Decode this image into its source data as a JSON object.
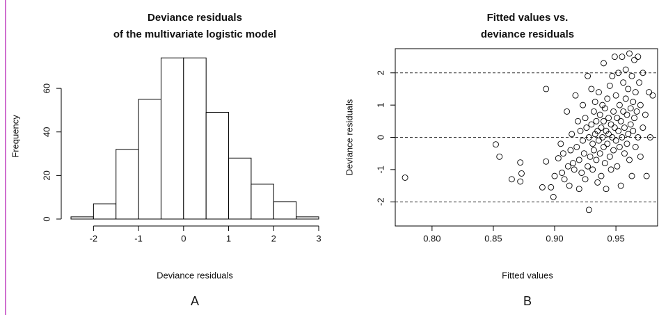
{
  "chart_data": [
    {
      "type": "histogram",
      "title": [
        "Deviance residuals",
        "of the multivariate logistic model"
      ],
      "x_label": "Deviance residuals",
      "y_label": "Frequency",
      "panel_label": "A",
      "bins": [
        -2.5,
        -2,
        -1.5,
        -1,
        -0.5,
        0,
        0.5,
        1,
        1.5,
        2,
        2.5,
        3
      ],
      "values": [
        1,
        7,
        32,
        55,
        74,
        74,
        49,
        28,
        16,
        8,
        1
      ],
      "color": "#ffffff",
      "edge_color": "#000000",
      "xlim": [
        -2.5,
        3
      ],
      "xticks": [
        -2,
        -1,
        0,
        1,
        2,
        3
      ],
      "ylim": [
        0,
        76
      ],
      "yticks": [
        0,
        20,
        40,
        60
      ]
    },
    {
      "type": "scatter",
      "title": [
        "Fitted values vs.",
        "deviance residuals"
      ],
      "x_label": "Fitted values",
      "y_label": "Deviance residuals",
      "panel_label": "B",
      "x": [
        0.778,
        0.852,
        0.855,
        0.865,
        0.872,
        0.873,
        0.872,
        0.893,
        0.89,
        0.897,
        0.899,
        0.893,
        0.9,
        0.903,
        0.905,
        0.906,
        0.908,
        0.907,
        0.91,
        0.911,
        0.912,
        0.913,
        0.914,
        0.915,
        0.916,
        0.917,
        0.918,
        0.919,
        0.92,
        0.92,
        0.921,
        0.922,
        0.923,
        0.923,
        0.924,
        0.925,
        0.925,
        0.926,
        0.927,
        0.927,
        0.928,
        0.928,
        0.929,
        0.93,
        0.93,
        0.931,
        0.931,
        0.932,
        0.932,
        0.933,
        0.933,
        0.934,
        0.934,
        0.935,
        0.935,
        0.936,
        0.936,
        0.937,
        0.937,
        0.938,
        0.938,
        0.939,
        0.939,
        0.94,
        0.94,
        0.94,
        0.941,
        0.941,
        0.942,
        0.942,
        0.943,
        0.943,
        0.944,
        0.944,
        0.945,
        0.945,
        0.946,
        0.946,
        0.947,
        0.947,
        0.948,
        0.948,
        0.949,
        0.949,
        0.95,
        0.95,
        0.951,
        0.951,
        0.952,
        0.952,
        0.953,
        0.953,
        0.954,
        0.954,
        0.955,
        0.955,
        0.956,
        0.956,
        0.957,
        0.957,
        0.958,
        0.958,
        0.959,
        0.959,
        0.96,
        0.96,
        0.961,
        0.961,
        0.962,
        0.962,
        0.963,
        0.963,
        0.964,
        0.964,
        0.965,
        0.965,
        0.966,
        0.966,
        0.967,
        0.968,
        0.968,
        0.969,
        0.97,
        0.97,
        0.972,
        0.972,
        0.974,
        0.975,
        0.977,
        0.978,
        0.98
      ],
      "y": [
        -1.25,
        -0.22,
        -0.6,
        -1.3,
        -0.78,
        -1.12,
        -1.37,
        1.5,
        -1.55,
        -1.55,
        -1.85,
        -0.75,
        -1.2,
        -0.65,
        -0.2,
        -1.1,
        -1.3,
        -0.5,
        0.8,
        -0.9,
        -1.5,
        -0.4,
        0.1,
        -0.8,
        -1.0,
        1.3,
        -0.3,
        0.5,
        -1.6,
        -0.7,
        0.2,
        -1.1,
        1.0,
        -0.1,
        -0.5,
        0.6,
        -1.3,
        0.3,
        -0.9,
        1.9,
        -2.25,
        0.0,
        -0.6,
        1.5,
        0.4,
        -0.2,
        -1.0,
        0.8,
        -0.4,
        0.1,
        1.1,
        -0.7,
        0.5,
        -1.4,
        0.2,
        -0.1,
        1.4,
        0.7,
        -0.5,
        0.3,
        -1.2,
        0.0,
        1.0,
        2.3,
        -0.3,
        0.5,
        -0.8,
        0.9,
        0.2,
        -1.6,
        1.2,
        -0.2,
        0.6,
        0.1,
        -0.6,
        1.6,
        0.4,
        -1.0,
        0.0,
        1.9,
        0.8,
        -0.4,
        2.5,
        0.3,
        -0.1,
        1.3,
        0.6,
        -0.9,
        2.0,
        0.2,
        -0.3,
        1.0,
        0.5,
        -1.5,
        2.5,
        0.0,
        0.8,
        1.7,
        -0.5,
        0.3,
        2.1,
        1.2,
        -0.2,
        0.7,
        1.5,
        0.1,
        2.6,
        -0.7,
        0.9,
        0.4,
        1.9,
        -1.2,
        1.1,
        0.2,
        2.4,
        0.6,
        -0.3,
        1.4,
        0.8,
        2.5,
        0.0,
        1.7,
        -0.6,
        1.0,
        0.3,
        2.0,
        0.7,
        -1.2,
        1.4,
        0.0,
        1.3
      ],
      "color": "#000000",
      "hlines": [
        -2,
        0,
        2
      ],
      "xlim": [
        0.77,
        0.984
      ],
      "xticks": [
        {
          "value": 0.8,
          "label": "0.80"
        },
        0.85,
        {
          "value": 0.9,
          "label": "0.90"
        },
        0.95
      ],
      "ylim": [
        -2.75,
        2.75
      ],
      "yticks": [
        -2,
        -1,
        0,
        1,
        2
      ]
    }
  ]
}
